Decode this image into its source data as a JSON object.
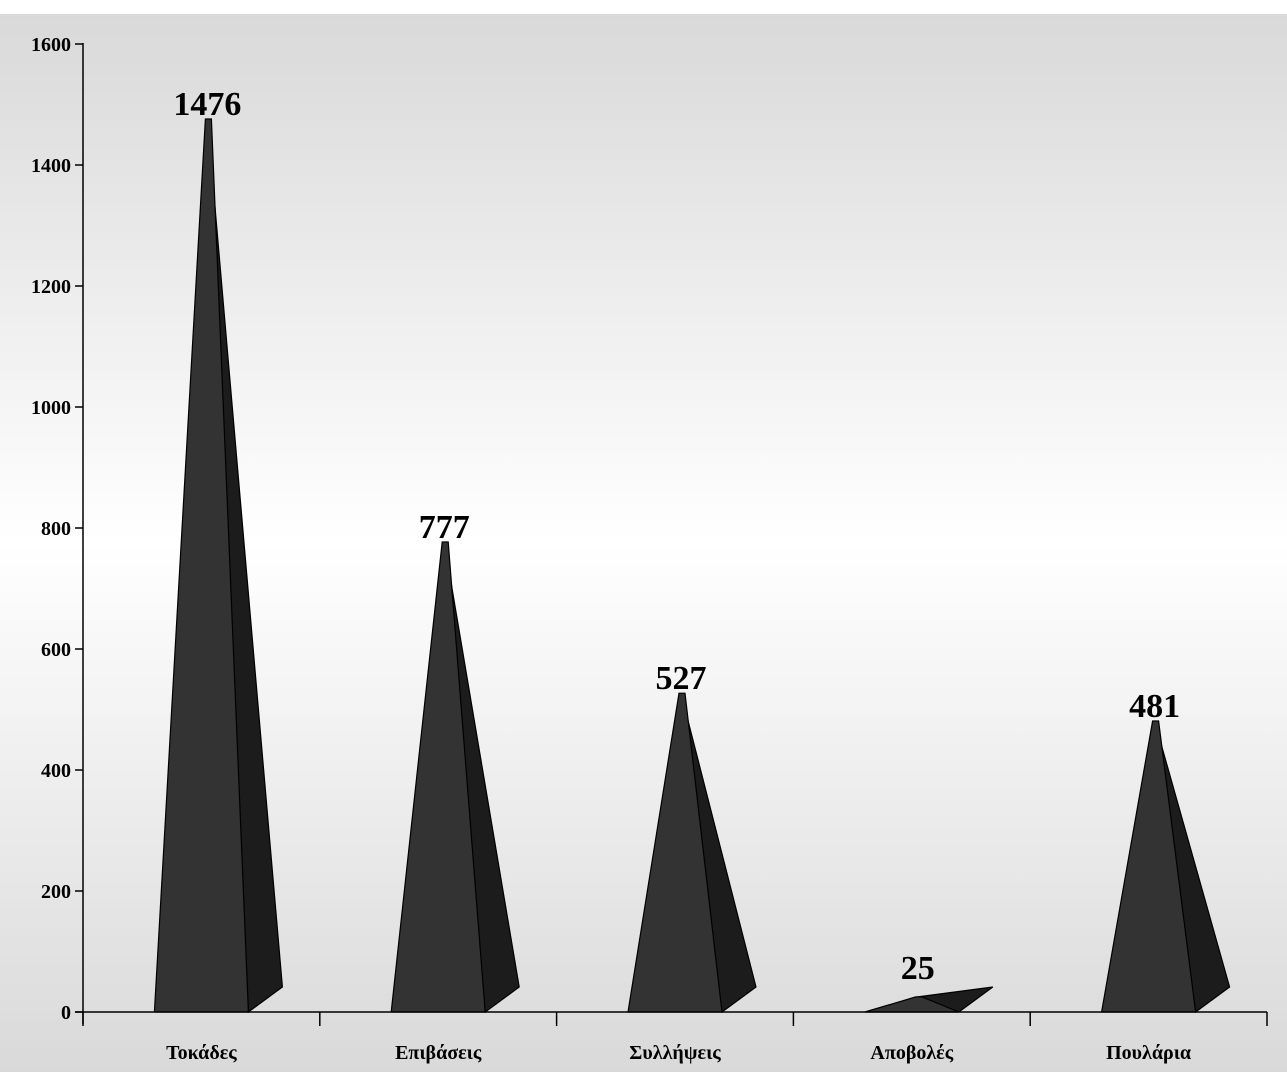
{
  "chart_data": {
    "type": "bar",
    "bar_shape": "pyramid-3d",
    "categories": [
      "Τοκάδες",
      "Επιβάσεις",
      "Συλλήψεις",
      "Αποβολές",
      "Πουλάρια"
    ],
    "series": [
      {
        "values": [
          1476,
          777,
          527,
          25,
          481
        ]
      }
    ],
    "data_labels": [
      "1476",
      "777",
      "527",
      "25",
      "481"
    ],
    "y_ticks": [
      0,
      200,
      400,
      600,
      800,
      1000,
      1200,
      1400,
      1600
    ],
    "y_tick_labels": [
      "0",
      "200",
      "400",
      "600",
      "800",
      "1000",
      "1200",
      "1400",
      "1600"
    ],
    "ylim": [
      0,
      1600
    ],
    "grid": false,
    "legend": "none",
    "colors": {
      "bar_front": "#333333",
      "bar_side": "#1c1c1c",
      "outline": "#000000",
      "background_top": "#d9d9d9",
      "background_middle": "#ffffff",
      "background_bottom": "#d9d9d9"
    }
  }
}
